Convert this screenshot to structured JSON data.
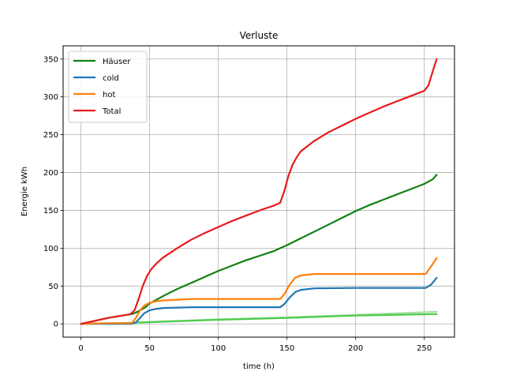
{
  "chart_data": {
    "type": "line",
    "title": "Verluste",
    "xlabel": "time (h)",
    "ylabel": "Energie kWh",
    "xlim": [
      -13,
      272
    ],
    "ylim": [
      -17.5,
      367.5
    ],
    "xticks": [
      0,
      50,
      100,
      150,
      200,
      250
    ],
    "yticks": [
      0,
      50,
      100,
      150,
      200,
      250,
      300,
      350
    ],
    "grid": true,
    "legend_position": "top-left",
    "series": [
      {
        "name": "Häuser",
        "color": "#128012",
        "in_legend": true,
        "x": [
          0,
          10,
          20,
          30,
          37,
          40,
          43,
          47,
          50,
          55,
          60,
          70,
          80,
          90,
          100,
          110,
          120,
          130,
          140,
          145,
          150,
          160,
          170,
          180,
          190,
          200,
          210,
          220,
          230,
          240,
          250,
          253,
          256,
          259
        ],
        "y": [
          0,
          4,
          8,
          11,
          13,
          15,
          18,
          22,
          27,
          32,
          37,
          46,
          54,
          62,
          70,
          77,
          84,
          90,
          96,
          100,
          104,
          113,
          122,
          131,
          140,
          149,
          157,
          164,
          171,
          178,
          185,
          188,
          191,
          197
        ]
      },
      {
        "name": "cold",
        "color": "#1f77b4",
        "in_legend": true,
        "x": [
          0,
          10,
          20,
          30,
          37,
          40,
          43,
          46,
          50,
          55,
          60,
          70,
          80,
          100,
          120,
          145,
          148,
          152,
          156,
          160,
          170,
          200,
          251,
          255,
          259
        ],
        "y": [
          0,
          0,
          0,
          0,
          0,
          2,
          8,
          14,
          18,
          20,
          21,
          21.5,
          22,
          22,
          22,
          22,
          26,
          35,
          42,
          45,
          47,
          47.5,
          47.5,
          52,
          61
        ]
      },
      {
        "name": "hot",
        "color": "#ff7f0e",
        "in_legend": true,
        "x": [
          0,
          10,
          20,
          30,
          37,
          40,
          43,
          46,
          50,
          55,
          60,
          70,
          80,
          100,
          120,
          145,
          148,
          152,
          156,
          160,
          170,
          200,
          251,
          255,
          259
        ],
        "y": [
          0,
          0.5,
          1,
          1,
          1,
          8,
          18,
          24,
          28,
          30,
          31,
          32,
          33,
          33,
          33,
          33,
          39,
          52,
          61,
          64,
          66,
          66,
          66,
          76,
          87
        ]
      },
      {
        "name": "Total",
        "color": "#e8191c",
        "in_legend": true,
        "x": [
          0,
          10,
          20,
          30,
          36,
          39,
          42,
          45,
          48,
          51,
          55,
          60,
          70,
          80,
          90,
          100,
          110,
          120,
          130,
          140,
          145,
          148,
          151,
          154,
          157,
          160,
          165,
          170,
          180,
          190,
          200,
          210,
          220,
          230,
          240,
          250,
          253,
          256,
          259
        ],
        "y": [
          0,
          4,
          8,
          11,
          13,
          18,
          33,
          50,
          63,
          72,
          80,
          88,
          100,
          111,
          120,
          128,
          136,
          143,
          150,
          156,
          160,
          175,
          195,
          210,
          220,
          228,
          235,
          242,
          253,
          262,
          271,
          279,
          287,
          294,
          301,
          308,
          315,
          333,
          350
        ]
      },
      {
        "name": "",
        "color": "#4dcc4d",
        "in_legend": false,
        "x": [
          0,
          30,
          60,
          100,
          150,
          200,
          259
        ],
        "y": [
          0,
          1,
          3,
          5.5,
          8,
          11,
          13
        ]
      },
      {
        "name": "",
        "color": "#a8dca8",
        "in_legend": false,
        "x": [
          0,
          30,
          60,
          100,
          150,
          200,
          259
        ],
        "y": [
          0,
          1.2,
          3.3,
          6,
          8.6,
          12,
          16
        ]
      }
    ]
  }
}
